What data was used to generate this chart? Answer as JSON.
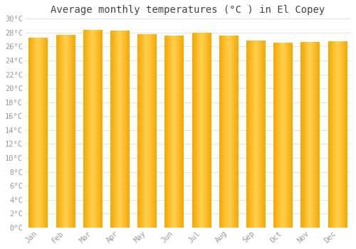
{
  "title": "Average monthly temperatures (°C ) in El Copey",
  "months": [
    "Jan",
    "Feb",
    "Mar",
    "Apr",
    "May",
    "Jun",
    "Jul",
    "Aug",
    "Sep",
    "Oct",
    "Nov",
    "Dec"
  ],
  "values": [
    27.2,
    27.6,
    28.3,
    28.2,
    27.7,
    27.5,
    27.9,
    27.5,
    26.8,
    26.5,
    26.6,
    26.7
  ],
  "ylim": [
    0,
    30
  ],
  "yticks": [
    0,
    2,
    4,
    6,
    8,
    10,
    12,
    14,
    16,
    18,
    20,
    22,
    24,
    26,
    28,
    30
  ],
  "bar_color_center": "#FFD050",
  "bar_color_edge": "#F5A800",
  "background_color": "#FFFFFF",
  "plot_bg_color": "#FFFFFF",
  "grid_color": "#DDDDDD",
  "title_fontsize": 10,
  "tick_fontsize": 7.5,
  "tick_color": "#999999",
  "font_family": "monospace",
  "bar_width": 0.7
}
